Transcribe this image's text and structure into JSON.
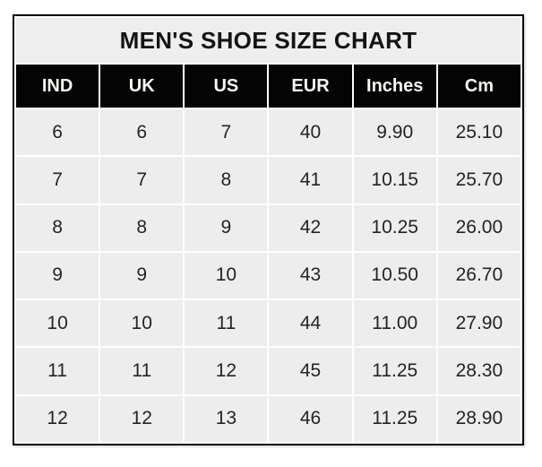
{
  "title": "MEN'S SHOE SIZE CHART",
  "chart_data": {
    "type": "table",
    "title": "MEN'S SHOE SIZE CHART",
    "columns": [
      "IND",
      "UK",
      "US",
      "EUR",
      "Inches",
      "Cm"
    ],
    "rows": [
      [
        "6",
        "6",
        "7",
        "40",
        "9.90",
        "25.10"
      ],
      [
        "7",
        "7",
        "8",
        "41",
        "10.15",
        "25.70"
      ],
      [
        "8",
        "8",
        "9",
        "42",
        "10.25",
        "26.00"
      ],
      [
        "9",
        "9",
        "10",
        "43",
        "10.50",
        "26.70"
      ],
      [
        "10",
        "10",
        "11",
        "44",
        "11.00",
        "27.90"
      ],
      [
        "11",
        "11",
        "12",
        "45",
        "11.25",
        "28.30"
      ],
      [
        "12",
        "12",
        "13",
        "46",
        "11.25",
        "28.90"
      ]
    ],
    "layout": {
      "grid": "white 2px separators between all cells",
      "outer_border": "2px solid black",
      "header_style": "black background, white bold text",
      "title_style": "light gray band, black bold text, centered"
    }
  },
  "colors": {
    "page_bg": "#ffffff",
    "title_bg": "#efeeef",
    "title_text": "#141414",
    "header_bg": "#040404",
    "header_text": "#f8f6f2",
    "cell_bg": "#eeedee",
    "cell_text": "#242424",
    "separator": "#ffffff",
    "border": "#000000"
  }
}
